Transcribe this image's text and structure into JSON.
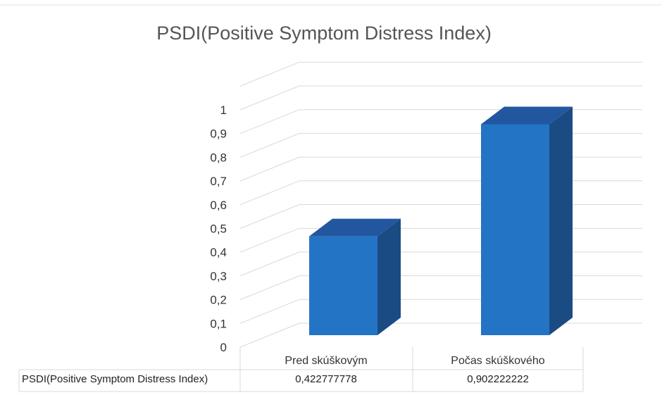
{
  "chart_data": {
    "type": "bar",
    "title": "PSDI(Positive Symptom Distress Index)",
    "categories": [
      "Pred skúškovým",
      "Počas skúškového"
    ],
    "series": [
      {
        "name": "PSDI(Positive Symptom Distress Index)",
        "values": [
          0.422777778,
          0.902222222
        ],
        "value_labels": [
          "0,422777778",
          "0,902222222"
        ]
      }
    ],
    "ylim": [
      0,
      1.1
    ],
    "y_ticks": [
      "0",
      "0,1",
      "0,2",
      "0,3",
      "0,4",
      "0,5",
      "0,6",
      "0,7",
      "0,8",
      "0,9",
      "1"
    ],
    "grid": true,
    "style": "3d-column",
    "data_table": true,
    "colors": {
      "bar_front": "#2474C6",
      "bar_top": "#2257A0",
      "bar_side": "#1B4B83",
      "grid": "#d9d9d9",
      "title": "#555555"
    }
  }
}
